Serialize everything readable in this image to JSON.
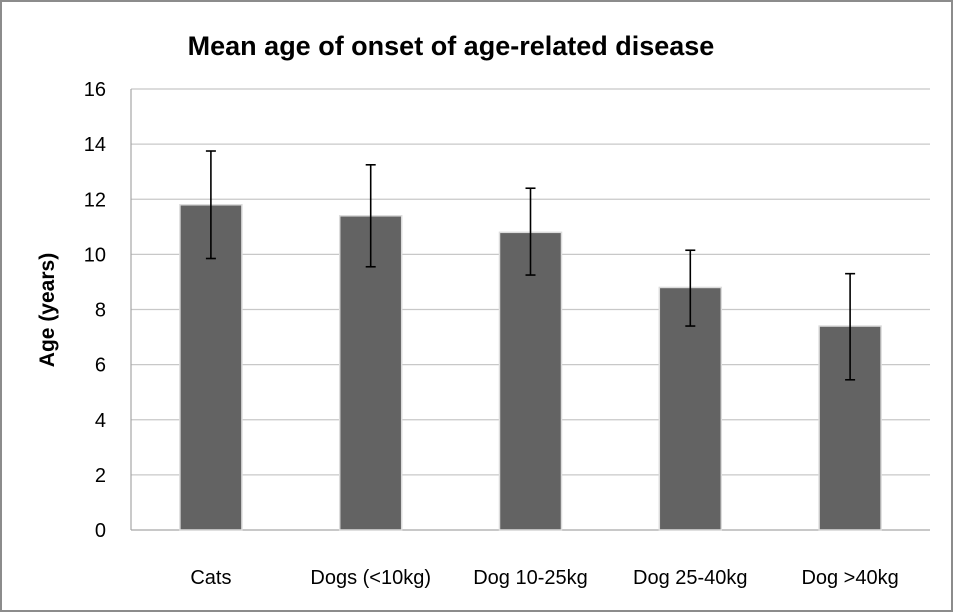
{
  "chart_data": {
    "type": "bar",
    "title": "Mean age of onset of age-related disease",
    "xlabel": "",
    "ylabel": "Age (years)",
    "ylim": [
      0,
      16
    ],
    "yticks": [
      0,
      2,
      4,
      6,
      8,
      10,
      12,
      14,
      16
    ],
    "grid": true,
    "legend": "none",
    "categories": [
      "Cats",
      "Dogs (<10kg)",
      "Dog 10-25kg",
      "Dog 25-40kg",
      "Dog >40kg"
    ],
    "values": [
      11.8,
      11.4,
      10.8,
      8.8,
      7.4
    ],
    "error_upper": [
      13.75,
      13.25,
      12.4,
      10.15,
      9.3
    ],
    "error_lower": [
      9.85,
      9.55,
      9.25,
      7.4,
      5.45
    ],
    "colors": {
      "bar": "#636363",
      "grid": "#c8c8c8",
      "axis": "#a6a6a6",
      "error": "#000000"
    }
  }
}
